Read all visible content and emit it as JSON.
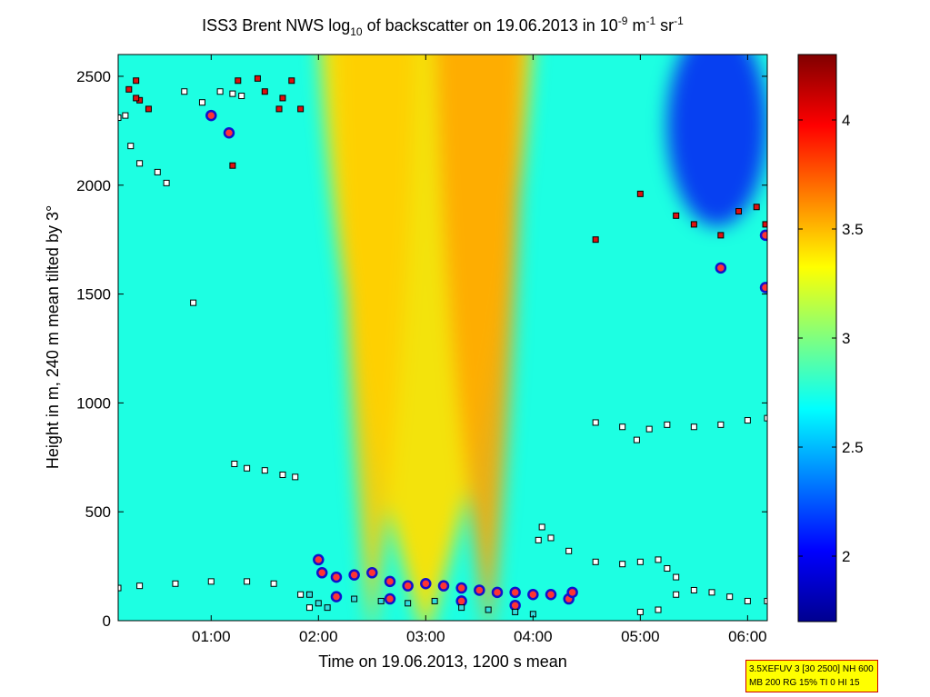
{
  "chart_data": {
    "type": "heatmap",
    "title": {
      "prefix": "ISS3 Brent NWS log",
      "prefix_sub": "10",
      "middle": " of backscatter on 19.06.2013 in 10",
      "unit_exp1": "-9",
      "unit_mid": " m",
      "unit_exp2": "-1",
      "unit_mid2": " sr",
      "unit_exp3": "-1"
    },
    "xlabel": "Time on 19.06.2013, 1200 s mean",
    "ylabel": "Height in m, 240 m mean tilted by 3°",
    "xlim": [
      "00:08",
      "06:11"
    ],
    "ylim": [
      0,
      2600
    ],
    "x_ticks": [
      "01:00",
      "02:00",
      "03:00",
      "04:00",
      "05:00",
      "06:00"
    ],
    "y_ticks": [
      "0",
      "500",
      "1000",
      "1500",
      "2000",
      "2500"
    ],
    "colorbar": {
      "range": [
        1.7,
        4.3
      ],
      "ticks": [
        "2",
        "2.5",
        "3",
        "3.5",
        "4"
      ],
      "colormap": "jet"
    },
    "grid": false,
    "field": {
      "background_value": 2.75,
      "plumes": [
        {
          "time_start": "02:00",
          "time_end": "04:00",
          "peak_time": "03:00",
          "value": 3.4
        },
        {
          "time_start": "02:10",
          "time_end": "02:55",
          "peak_time": "02:30",
          "value": 3.45
        },
        {
          "time_start": "03:05",
          "time_end": "03:55",
          "peak_time": "03:35",
          "value": 3.55
        }
      ],
      "low_region": {
        "time_start": "05:15",
        "time_end": "06:11",
        "height_min": 1950,
        "height_max": 2600,
        "value": 2.0
      }
    },
    "series": [
      {
        "marker": "square-light",
        "color": "#ffffff",
        "points": [
          [
            "00:08",
            150
          ],
          [
            "00:20",
            160
          ],
          [
            "00:40",
            170
          ],
          [
            "01:00",
            180
          ],
          [
            "01:20",
            180
          ],
          [
            "01:35",
            170
          ],
          [
            "01:50",
            120
          ],
          [
            "01:55",
            60
          ]
        ]
      },
      {
        "marker": "square-light",
        "color": "#ffffff",
        "points": [
          [
            "01:13",
            720
          ],
          [
            "01:20",
            700
          ],
          [
            "01:30",
            690
          ],
          [
            "01:40",
            670
          ],
          [
            "01:47",
            660
          ]
        ]
      },
      {
        "marker": "square-light",
        "color": "#ffffff",
        "points": [
          [
            "00:08",
            2310
          ],
          [
            "00:12",
            2320
          ],
          [
            "00:15",
            2180
          ],
          [
            "00:20",
            2100
          ],
          [
            "00:30",
            2060
          ],
          [
            "00:35",
            2010
          ],
          [
            "00:45",
            2430
          ],
          [
            "00:55",
            2380
          ]
        ]
      },
      {
        "marker": "square-light",
        "color": "#ffffff",
        "points": [
          [
            "01:05",
            2430
          ],
          [
            "01:12",
            2420
          ],
          [
            "01:17",
            2410
          ]
        ]
      },
      {
        "marker": "square-light",
        "color": "#ffffff",
        "points": [
          [
            "00:50",
            1460
          ]
        ]
      },
      {
        "marker": "square-light",
        "color": "#ffffff",
        "points": [
          [
            "04:03",
            370
          ],
          [
            "04:05",
            430
          ],
          [
            "04:10",
            380
          ],
          [
            "04:20",
            320
          ],
          [
            "04:35",
            270
          ],
          [
            "04:50",
            260
          ],
          [
            "05:00",
            270
          ],
          [
            "05:10",
            280
          ],
          [
            "05:15",
            240
          ],
          [
            "05:20",
            200
          ]
        ]
      },
      {
        "marker": "square-light",
        "color": "#ffffff",
        "points": [
          [
            "04:35",
            910
          ],
          [
            "04:50",
            890
          ],
          [
            "04:58",
            830
          ],
          [
            "05:05",
            880
          ],
          [
            "05:15",
            900
          ],
          [
            "05:30",
            890
          ],
          [
            "05:45",
            900
          ],
          [
            "06:00",
            920
          ],
          [
            "06:11",
            930
          ]
        ]
      },
      {
        "marker": "square-light",
        "color": "#ffffff",
        "points": [
          [
            "05:00",
            40
          ],
          [
            "05:10",
            50
          ],
          [
            "05:20",
            120
          ],
          [
            "05:30",
            140
          ],
          [
            "05:40",
            130
          ],
          [
            "05:50",
            110
          ],
          [
            "06:00",
            90
          ],
          [
            "06:11",
            90
          ]
        ]
      },
      {
        "marker": "square-red",
        "color": "#dd1111",
        "points": [
          [
            "00:14",
            2440
          ],
          [
            "00:18",
            2480
          ],
          [
            "00:20",
            2390
          ],
          [
            "00:25",
            2350
          ],
          [
            "00:18",
            2400
          ],
          [
            "01:15",
            2480
          ],
          [
            "01:26",
            2490
          ],
          [
            "01:30",
            2430
          ],
          [
            "01:40",
            2400
          ],
          [
            "01:45",
            2480
          ],
          [
            "01:38",
            2350
          ],
          [
            "01:50",
            2350
          ],
          [
            "01:12",
            2090
          ],
          [
            "04:35",
            1750
          ],
          [
            "05:00",
            1960
          ],
          [
            "05:20",
            1860
          ],
          [
            "05:30",
            1820
          ],
          [
            "05:45",
            1770
          ],
          [
            "05:55",
            1880
          ],
          [
            "06:05",
            1900
          ],
          [
            "06:10",
            1820
          ]
        ]
      },
      {
        "marker": "circle-blue",
        "color": "#1111cc",
        "points": [
          [
            "01:00",
            2320
          ],
          [
            "01:10",
            2240
          ],
          [
            "05:45",
            1620
          ],
          [
            "06:10",
            1770
          ],
          [
            "06:10",
            1530
          ],
          [
            "02:00",
            280
          ],
          [
            "02:02",
            220
          ],
          [
            "02:10",
            200
          ],
          [
            "02:20",
            210
          ],
          [
            "02:30",
            220
          ],
          [
            "02:40",
            180
          ],
          [
            "02:50",
            160
          ],
          [
            "03:00",
            170
          ],
          [
            "03:10",
            160
          ],
          [
            "03:20",
            150
          ],
          [
            "03:30",
            140
          ],
          [
            "03:40",
            130
          ],
          [
            "03:50",
            130
          ],
          [
            "04:00",
            120
          ],
          [
            "04:10",
            120
          ],
          [
            "04:20",
            100
          ],
          [
            "04:22",
            130
          ],
          [
            "02:10",
            110
          ],
          [
            "02:40",
            100
          ],
          [
            "03:20",
            90
          ],
          [
            "03:50",
            70
          ]
        ]
      },
      {
        "marker": "square-cyan",
        "color": "#33dddd",
        "points": [
          [
            "01:55",
            120
          ],
          [
            "02:00",
            80
          ],
          [
            "02:05",
            60
          ],
          [
            "02:20",
            100
          ],
          [
            "02:35",
            90
          ],
          [
            "02:50",
            80
          ],
          [
            "03:05",
            90
          ],
          [
            "03:20",
            60
          ],
          [
            "03:35",
            50
          ],
          [
            "03:50",
            40
          ],
          [
            "04:00",
            30
          ]
        ]
      }
    ]
  },
  "info_box": {
    "line1": "3.5XEFUV 3 [30 2500] NH 600",
    "line2": "MB 200 RG 15% TI 0 HI 15"
  }
}
